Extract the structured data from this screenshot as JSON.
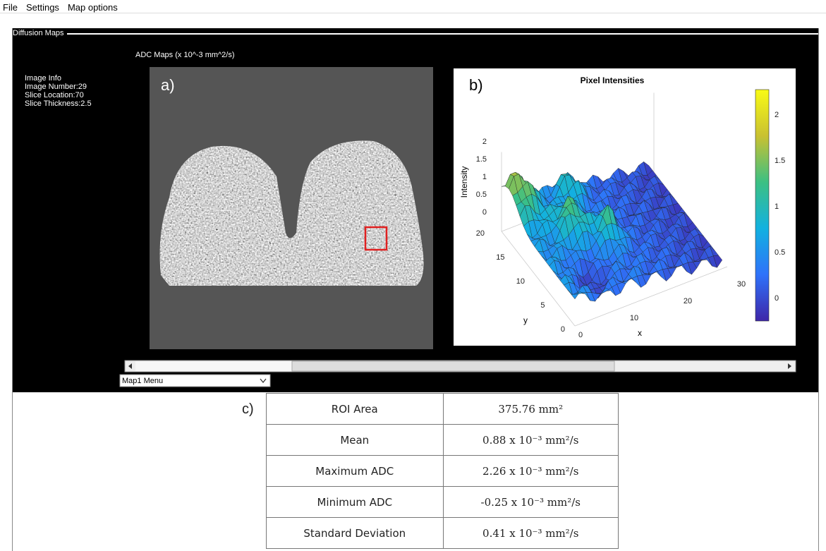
{
  "menu": [
    "File",
    "Settings",
    "Map options"
  ],
  "panel_title": "Diffusion Maps",
  "image_info": [
    "Image Info",
    "Image Number:29",
    "Slice Location:70",
    "Slice Thickness:2.5"
  ],
  "map_title": "ADC Maps (x 10^-3 mm^2/s)",
  "panel_a_label": "a)",
  "panel_b_label": "b)",
  "panel_c_label": "c)",
  "surface_plot": {
    "title": "Pixel Intensities",
    "xlabel": "x",
    "ylabel": "y",
    "zlabel": "Intensity",
    "xticks": [
      "0",
      "10",
      "20",
      "30"
    ],
    "yticks": [
      "0",
      "5",
      "10",
      "15",
      "20"
    ],
    "zticks": [
      "0",
      "0.5",
      "1",
      "1.5",
      "2"
    ],
    "colorbar_ticks": [
      "0",
      "0.5",
      "1",
      "1.5",
      "2"
    ]
  },
  "dropdown": "Map1 Menu",
  "table": {
    "rows": [
      [
        "ROI Area",
        "375.76 mm²"
      ],
      [
        "Mean",
        "0.88 x 10⁻³ mm²/s"
      ],
      [
        "Maximum ADC",
        "2.26 x 10⁻³ mm²/s"
      ],
      [
        "Minimum ADC",
        "-0.25 x 10⁻³ mm²/s"
      ],
      [
        "Standard Deviation",
        "0.41 x 10⁻³ mm²/s"
      ]
    ]
  }
}
